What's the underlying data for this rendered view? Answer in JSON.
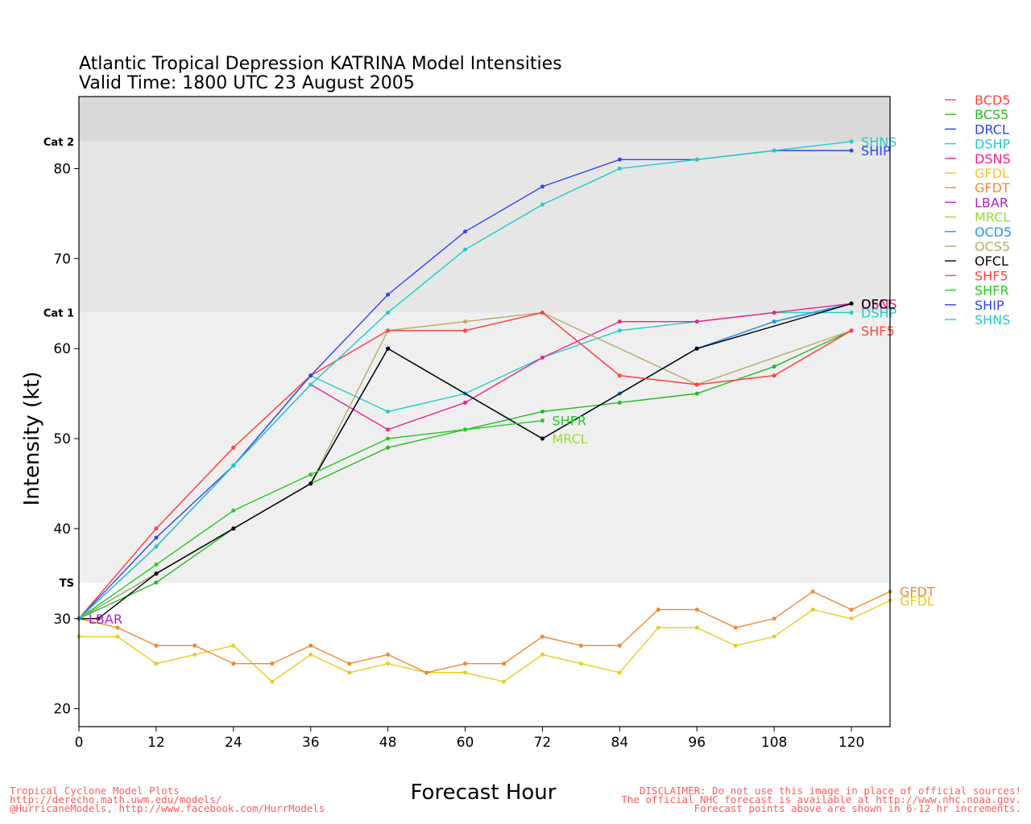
{
  "chart_data": {
    "type": "line",
    "title": "Atlantic Tropical Depression KATRINA Model Intensities",
    "subtitle": "Valid Time: 1800 UTC 23 August 2005",
    "xlabel": "Forecast Hour",
    "ylabel": "Intensity (kt)",
    "xlim": [
      0,
      126
    ],
    "ylim": [
      18,
      88
    ],
    "xticks": [
      0,
      12,
      24,
      36,
      48,
      60,
      72,
      84,
      96,
      108,
      120
    ],
    "yticks": [
      20,
      30,
      40,
      50,
      60,
      70,
      80
    ],
    "bands": [
      {
        "label": "TS",
        "from": 34,
        "to": 64,
        "color": "#efefef"
      },
      {
        "label": "Cat 1",
        "from": 64,
        "to": 83,
        "color": "#e6e6e6"
      },
      {
        "label": "Cat 2",
        "from": 83,
        "to": 88,
        "color": "#d9d9d9"
      }
    ],
    "grid": false,
    "legend_position": "right",
    "series": [
      {
        "name": "BCD5",
        "color": "#ff4444",
        "end_label": "",
        "points": [
          [
            0,
            30
          ],
          [
            12,
            40
          ],
          [
            24,
            49
          ],
          [
            36,
            57
          ],
          [
            48,
            62
          ],
          [
            60,
            62
          ],
          [
            72,
            64
          ],
          [
            84,
            57
          ],
          [
            96,
            56
          ],
          [
            108,
            57
          ],
          [
            120,
            62
          ]
        ]
      },
      {
        "name": "BCS5",
        "color": "#22bb22",
        "end_label": "",
        "points": [
          [
            0,
            30
          ],
          [
            12,
            34
          ],
          [
            24,
            40
          ],
          [
            36,
            45
          ],
          [
            48,
            49
          ],
          [
            60,
            51
          ],
          [
            72,
            53
          ],
          [
            84,
            54
          ],
          [
            96,
            55
          ],
          [
            108,
            58
          ],
          [
            120,
            62
          ]
        ]
      },
      {
        "name": "DRCL",
        "color": "#2244ee",
        "end_label": "",
        "points": [
          [
            0,
            30
          ],
          [
            12,
            35
          ],
          [
            24,
            40
          ],
          [
            36,
            45
          ],
          [
            48,
            60
          ],
          [
            60,
            55
          ],
          [
            72,
            50
          ],
          [
            84,
            55
          ],
          [
            96,
            60
          ],
          [
            108,
            63
          ],
          [
            120,
            65
          ]
        ]
      },
      {
        "name": "DSHP",
        "color": "#22cccc",
        "end_label": "DSHP",
        "points": [
          [
            0,
            30
          ],
          [
            12,
            38
          ],
          [
            24,
            47
          ],
          [
            36,
            57
          ],
          [
            48,
            53
          ],
          [
            60,
            55
          ],
          [
            72,
            59
          ],
          [
            84,
            62
          ],
          [
            96,
            63
          ],
          [
            108,
            64
          ],
          [
            120,
            64
          ]
        ]
      },
      {
        "name": "DSNS",
        "color": "#ee2288",
        "end_label": "DSNS",
        "points": [
          [
            0,
            30
          ],
          [
            12,
            38
          ],
          [
            24,
            47
          ],
          [
            36,
            56
          ],
          [
            48,
            51
          ],
          [
            60,
            54
          ],
          [
            72,
            59
          ],
          [
            84,
            63
          ],
          [
            96,
            63
          ],
          [
            108,
            64
          ],
          [
            120,
            65
          ]
        ]
      },
      {
        "name": "GFDL",
        "color": "#e6cc22",
        "end_label": "GFDL",
        "points": [
          [
            0,
            28
          ],
          [
            6,
            28
          ],
          [
            12,
            25
          ],
          [
            18,
            26
          ],
          [
            24,
            27
          ],
          [
            30,
            23
          ],
          [
            36,
            26
          ],
          [
            42,
            24
          ],
          [
            48,
            25
          ],
          [
            54,
            24
          ],
          [
            60,
            24
          ],
          [
            66,
            23
          ],
          [
            72,
            26
          ],
          [
            78,
            25
          ],
          [
            84,
            24
          ],
          [
            90,
            29
          ],
          [
            96,
            29
          ],
          [
            102,
            27
          ],
          [
            108,
            28
          ],
          [
            114,
            31
          ],
          [
            120,
            30
          ],
          [
            126,
            32
          ]
        ]
      },
      {
        "name": "GFDT",
        "color": "#ee8833",
        "end_label": "GFDT",
        "points": [
          [
            0,
            30
          ],
          [
            6,
            29
          ],
          [
            12,
            27
          ],
          [
            18,
            27
          ],
          [
            24,
            25
          ],
          [
            30,
            25
          ],
          [
            36,
            27
          ],
          [
            42,
            25
          ],
          [
            48,
            26
          ],
          [
            54,
            24
          ],
          [
            60,
            25
          ],
          [
            66,
            25
          ],
          [
            72,
            28
          ],
          [
            78,
            27
          ],
          [
            84,
            27
          ],
          [
            90,
            31
          ],
          [
            96,
            31
          ],
          [
            102,
            29
          ],
          [
            108,
            30
          ],
          [
            114,
            33
          ],
          [
            120,
            31
          ],
          [
            126,
            33
          ]
        ]
      },
      {
        "name": "LBAR",
        "color": "#aa22cc",
        "end_label": "LBAR",
        "points": [
          [
            0,
            30
          ]
        ]
      },
      {
        "name": "MRCL",
        "color": "#99dd33",
        "end_label": "MRCL",
        "points": [
          [
            0,
            30
          ],
          [
            12,
            35
          ],
          [
            24,
            40
          ],
          [
            36,
            45
          ],
          [
            48,
            60
          ],
          [
            60,
            55
          ],
          [
            72,
            50
          ]
        ]
      },
      {
        "name": "OCD5",
        "color": "#2299ee",
        "end_label": "",
        "points": [
          [
            0,
            30
          ],
          [
            12,
            35
          ],
          [
            24,
            40
          ],
          [
            36,
            45
          ],
          [
            48,
            60
          ],
          [
            60,
            55
          ],
          [
            72,
            50
          ],
          [
            84,
            55
          ],
          [
            96,
            60
          ],
          [
            108,
            63
          ],
          [
            120,
            65
          ]
        ]
      },
      {
        "name": "OCS5",
        "color": "#bbaa66",
        "end_label": "",
        "points": [
          [
            0,
            30
          ],
          [
            12,
            35
          ],
          [
            24,
            40
          ],
          [
            36,
            45
          ],
          [
            48,
            62
          ],
          [
            60,
            63
          ],
          [
            72,
            64
          ],
          [
            96,
            56
          ],
          [
            120,
            62
          ]
        ]
      },
      {
        "name": "OFCL",
        "color": "#000000",
        "end_label": "OFCL",
        "points": [
          [
            0,
            30
          ],
          [
            3,
            30
          ],
          [
            12,
            35
          ],
          [
            24,
            40
          ],
          [
            36,
            45
          ],
          [
            48,
            60
          ],
          [
            72,
            50
          ],
          [
            96,
            60
          ],
          [
            120,
            65
          ]
        ]
      },
      {
        "name": "SHF5",
        "color": "#ff4444",
        "end_label": "SHF5",
        "points": [
          [
            0,
            30
          ],
          [
            12,
            40
          ],
          [
            24,
            49
          ],
          [
            36,
            57
          ],
          [
            48,
            62
          ],
          [
            60,
            62
          ],
          [
            72,
            64
          ],
          [
            84,
            57
          ],
          [
            96,
            56
          ],
          [
            108,
            57
          ],
          [
            120,
            62
          ]
        ]
      },
      {
        "name": "SHFR",
        "color": "#22cc22",
        "end_label": "SHFR",
        "points": [
          [
            0,
            30
          ],
          [
            12,
            36
          ],
          [
            24,
            42
          ],
          [
            36,
            46
          ],
          [
            48,
            50
          ],
          [
            60,
            51
          ],
          [
            72,
            52
          ]
        ]
      },
      {
        "name": "SHIP",
        "color": "#3344ee",
        "end_label": "SHIP",
        "points": [
          [
            0,
            30
          ],
          [
            12,
            39
          ],
          [
            24,
            47
          ],
          [
            36,
            57
          ],
          [
            48,
            66
          ],
          [
            60,
            73
          ],
          [
            72,
            78
          ],
          [
            84,
            81
          ],
          [
            96,
            81
          ],
          [
            108,
            82
          ],
          [
            120,
            82
          ]
        ]
      },
      {
        "name": "SHNS",
        "color": "#22cccc",
        "end_label": "SHNS",
        "points": [
          [
            0,
            30
          ],
          [
            12,
            38
          ],
          [
            24,
            47
          ],
          [
            36,
            56
          ],
          [
            48,
            64
          ],
          [
            60,
            71
          ],
          [
            72,
            76
          ],
          [
            84,
            80
          ],
          [
            96,
            81
          ],
          [
            108,
            82
          ],
          [
            120,
            83
          ]
        ]
      }
    ]
  },
  "footer": {
    "left": [
      "Tropical Cyclone Model Plots",
      "http://derecho.math.uwm.edu/models/",
      "@HurricaneModels, http://www.facebook.com/HurrModels"
    ],
    "right": [
      "DISCLAIMER: Do not use this image in place of official sources!",
      "The official NHC forecast is available at http://www.nhc.noaa.gov.",
      "Forecast points above are shown in 6-12 hr increments."
    ]
  }
}
